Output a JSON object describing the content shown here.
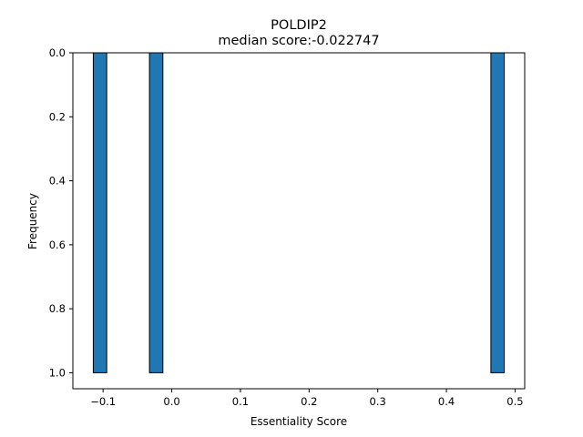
{
  "chart_data": {
    "type": "bar",
    "title": "POLDIP2",
    "subtitle": "median score:-0.022747",
    "xlabel": "Essentiality Score",
    "ylabel": "Frequency",
    "xlim": [
      -0.144,
      0.514
    ],
    "ylim": [
      1.05,
      0.0
    ],
    "y_inverted": true,
    "bar_color": "#1f77b4",
    "edge_color": "#000000",
    "bar_width": 0.0195,
    "bars": [
      {
        "x": -0.1045,
        "value": 1.0
      },
      {
        "x": -0.0227,
        "value": 1.0
      },
      {
        "x": 0.4745,
        "value": 1.0
      }
    ],
    "x_ticks": [
      {
        "value": -0.1,
        "label": "−0.1"
      },
      {
        "value": 0.0,
        "label": "0.0"
      },
      {
        "value": 0.1,
        "label": "0.1"
      },
      {
        "value": 0.2,
        "label": "0.2"
      },
      {
        "value": 0.3,
        "label": "0.3"
      },
      {
        "value": 0.4,
        "label": "0.4"
      },
      {
        "value": 0.5,
        "label": "0.5"
      }
    ],
    "y_ticks": [
      {
        "value": 0.0,
        "label": "0.0"
      },
      {
        "value": 0.2,
        "label": "0.2"
      },
      {
        "value": 0.4,
        "label": "0.4"
      },
      {
        "value": 0.6,
        "label": "0.6"
      },
      {
        "value": 0.8,
        "label": "0.8"
      },
      {
        "value": 1.0,
        "label": "1.0"
      }
    ],
    "grid": false,
    "legend": "none"
  }
}
